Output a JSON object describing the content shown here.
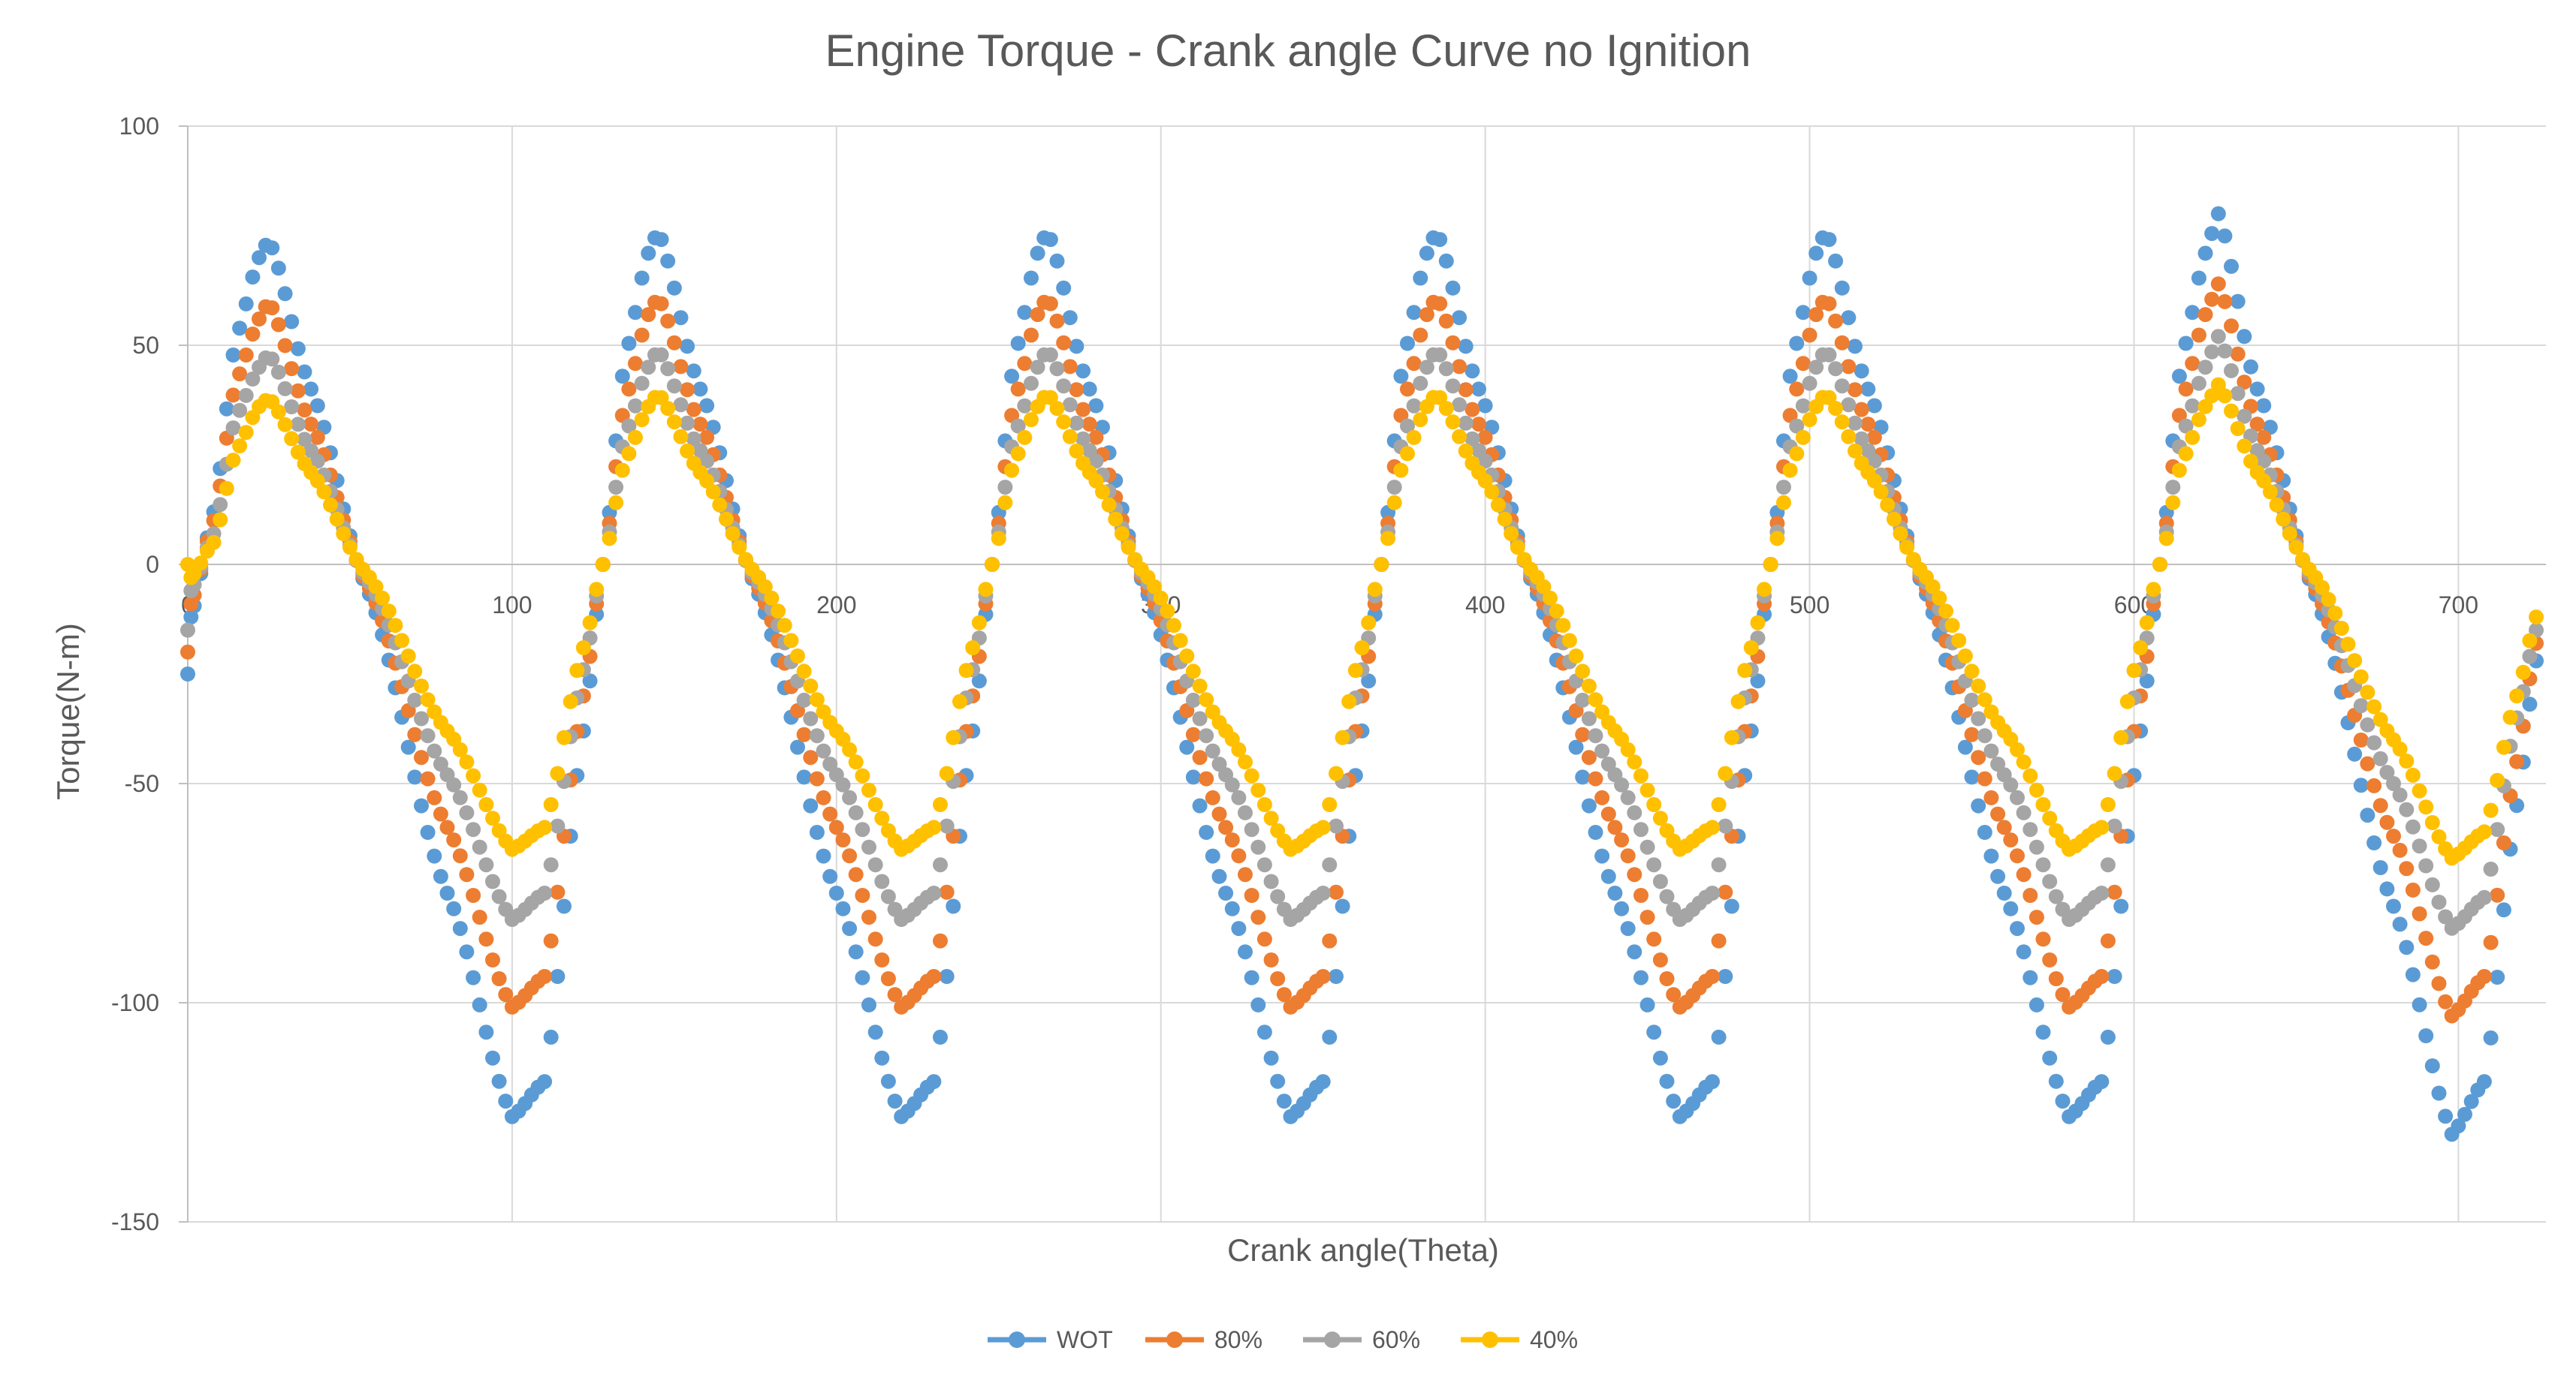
{
  "chart_data": {
    "type": "scatter",
    "title": "Engine Torque - Crank angle Curve no Ignition",
    "xlabel": "Crank angle(Theta)",
    "ylabel": "Torque(N-m)",
    "xlim": [
      0,
      727
    ],
    "ylim": [
      -150,
      100
    ],
    "xticks": [
      0,
      100,
      200,
      300,
      400,
      500,
      600,
      700
    ],
    "yticks": [
      100,
      50,
      0,
      -50,
      -100,
      -150
    ],
    "xtick_labels": [
      "0",
      "100",
      "200",
      "300",
      "400",
      "500",
      "600",
      "700"
    ],
    "ytick_labels": [
      "100",
      "50",
      "0",
      "-50",
      "-100",
      "-150"
    ],
    "grid": true,
    "legend_position": "bottom",
    "x_step": 2,
    "x_end": 724,
    "series": [
      {
        "name": "WOT",
        "color": "#5B9BD5",
        "anchors": [
          [
            0,
            -25
          ],
          [
            1,
            -12
          ],
          [
            8,
            12
          ],
          [
            15,
            52
          ],
          [
            22,
            70
          ],
          [
            25,
            74
          ],
          [
            38,
            40
          ],
          [
            55,
            -5
          ],
          [
            80,
            -75
          ],
          [
            100,
            -126
          ],
          [
            110,
            -118
          ],
          [
            122,
            -38
          ],
          [
            128,
            0
          ],
          [
            135,
            48
          ],
          [
            142,
            71
          ],
          [
            145,
            76
          ],
          [
            158,
            40
          ],
          [
            175,
            -5
          ],
          [
            200,
            -75
          ],
          [
            220,
            -126
          ],
          [
            230,
            -118
          ],
          [
            242,
            -38
          ],
          [
            248,
            0
          ],
          [
            255,
            48
          ],
          [
            262,
            71
          ],
          [
            265,
            76
          ],
          [
            278,
            40
          ],
          [
            295,
            -5
          ],
          [
            320,
            -75
          ],
          [
            340,
            -126
          ],
          [
            350,
            -118
          ],
          [
            362,
            -38
          ],
          [
            368,
            0
          ],
          [
            375,
            48
          ],
          [
            382,
            71
          ],
          [
            385,
            76
          ],
          [
            398,
            40
          ],
          [
            415,
            -5
          ],
          [
            440,
            -75
          ],
          [
            460,
            -126
          ],
          [
            470,
            -118
          ],
          [
            482,
            -38
          ],
          [
            488,
            0
          ],
          [
            495,
            48
          ],
          [
            502,
            71
          ],
          [
            505,
            76
          ],
          [
            518,
            40
          ],
          [
            535,
            -5
          ],
          [
            560,
            -75
          ],
          [
            580,
            -126
          ],
          [
            590,
            -118
          ],
          [
            602,
            -38
          ],
          [
            608,
            0
          ],
          [
            615,
            48
          ],
          [
            622,
            71
          ],
          [
            626,
            80
          ],
          [
            638,
            40
          ],
          [
            655,
            -5
          ],
          [
            680,
            -78
          ],
          [
            698,
            -130
          ],
          [
            708,
            -118
          ],
          [
            718,
            -55
          ],
          [
            724,
            -22
          ]
        ]
      },
      {
        "name": "80%",
        "color": "#ED7D31",
        "anchors": [
          [
            0,
            -20
          ],
          [
            1,
            -9
          ],
          [
            8,
            10
          ],
          [
            15,
            42
          ],
          [
            22,
            56
          ],
          [
            25,
            60
          ],
          [
            38,
            32
          ],
          [
            55,
            -4
          ],
          [
            80,
            -60
          ],
          [
            100,
            -101
          ],
          [
            110,
            -94
          ],
          [
            122,
            -30
          ],
          [
            128,
            0
          ],
          [
            135,
            38
          ],
          [
            142,
            57
          ],
          [
            145,
            61
          ],
          [
            158,
            32
          ],
          [
            175,
            -4
          ],
          [
            200,
            -60
          ],
          [
            220,
            -101
          ],
          [
            230,
            -94
          ],
          [
            242,
            -30
          ],
          [
            248,
            0
          ],
          [
            255,
            38
          ],
          [
            262,
            57
          ],
          [
            265,
            61
          ],
          [
            278,
            32
          ],
          [
            295,
            -4
          ],
          [
            320,
            -60
          ],
          [
            340,
            -101
          ],
          [
            350,
            -94
          ],
          [
            362,
            -30
          ],
          [
            368,
            0
          ],
          [
            375,
            38
          ],
          [
            382,
            57
          ],
          [
            385,
            61
          ],
          [
            398,
            32
          ],
          [
            415,
            -4
          ],
          [
            440,
            -60
          ],
          [
            460,
            -101
          ],
          [
            470,
            -94
          ],
          [
            482,
            -30
          ],
          [
            488,
            0
          ],
          [
            495,
            38
          ],
          [
            502,
            57
          ],
          [
            505,
            61
          ],
          [
            518,
            32
          ],
          [
            535,
            -4
          ],
          [
            560,
            -60
          ],
          [
            580,
            -101
          ],
          [
            590,
            -94
          ],
          [
            602,
            -30
          ],
          [
            608,
            0
          ],
          [
            615,
            38
          ],
          [
            622,
            57
          ],
          [
            626,
            64
          ],
          [
            638,
            32
          ],
          [
            655,
            -4
          ],
          [
            680,
            -62
          ],
          [
            698,
            -103
          ],
          [
            708,
            -94
          ],
          [
            718,
            -45
          ],
          [
            724,
            -18
          ]
        ]
      },
      {
        "name": "60%",
        "color": "#A5A5A5",
        "anchors": [
          [
            0,
            -15
          ],
          [
            1,
            -6
          ],
          [
            8,
            7
          ],
          [
            15,
            34
          ],
          [
            22,
            45
          ],
          [
            25,
            48
          ],
          [
            38,
            26
          ],
          [
            55,
            -3
          ],
          [
            80,
            -48
          ],
          [
            100,
            -81
          ],
          [
            110,
            -75
          ],
          [
            122,
            -24
          ],
          [
            128,
            0
          ],
          [
            135,
            30
          ],
          [
            142,
            45
          ],
          [
            145,
            49
          ],
          [
            158,
            26
          ],
          [
            175,
            -3
          ],
          [
            200,
            -48
          ],
          [
            220,
            -81
          ],
          [
            230,
            -75
          ],
          [
            242,
            -24
          ],
          [
            248,
            0
          ],
          [
            255,
            30
          ],
          [
            262,
            45
          ],
          [
            265,
            49
          ],
          [
            278,
            26
          ],
          [
            295,
            -3
          ],
          [
            320,
            -48
          ],
          [
            340,
            -81
          ],
          [
            350,
            -75
          ],
          [
            362,
            -24
          ],
          [
            368,
            0
          ],
          [
            375,
            30
          ],
          [
            382,
            45
          ],
          [
            385,
            49
          ],
          [
            398,
            26
          ],
          [
            415,
            -3
          ],
          [
            440,
            -48
          ],
          [
            460,
            -81
          ],
          [
            470,
            -75
          ],
          [
            482,
            -24
          ],
          [
            488,
            0
          ],
          [
            495,
            30
          ],
          [
            502,
            45
          ],
          [
            505,
            49
          ],
          [
            518,
            26
          ],
          [
            535,
            -3
          ],
          [
            560,
            -48
          ],
          [
            580,
            -81
          ],
          [
            590,
            -75
          ],
          [
            602,
            -24
          ],
          [
            608,
            0
          ],
          [
            615,
            30
          ],
          [
            622,
            45
          ],
          [
            626,
            52
          ],
          [
            638,
            26
          ],
          [
            655,
            -3
          ],
          [
            680,
            -50
          ],
          [
            698,
            -83
          ],
          [
            708,
            -76
          ],
          [
            718,
            -35
          ],
          [
            724,
            -15
          ]
        ]
      },
      {
        "name": "40%",
        "color": "#FFC000",
        "anchors": [
          [
            0,
            0
          ],
          [
            1,
            -3
          ],
          [
            8,
            5
          ],
          [
            15,
            26
          ],
          [
            22,
            36
          ],
          [
            25,
            38
          ],
          [
            38,
            21
          ],
          [
            55,
            -2
          ],
          [
            80,
            -38
          ],
          [
            100,
            -65
          ],
          [
            110,
            -60
          ],
          [
            122,
            -19
          ],
          [
            128,
            0
          ],
          [
            135,
            24
          ],
          [
            142,
            36
          ],
          [
            145,
            39
          ],
          [
            158,
            21
          ],
          [
            175,
            -2
          ],
          [
            200,
            -38
          ],
          [
            220,
            -65
          ],
          [
            230,
            -60
          ],
          [
            242,
            -19
          ],
          [
            248,
            0
          ],
          [
            255,
            24
          ],
          [
            262,
            36
          ],
          [
            265,
            39
          ],
          [
            278,
            21
          ],
          [
            295,
            -2
          ],
          [
            320,
            -38
          ],
          [
            340,
            -65
          ],
          [
            350,
            -60
          ],
          [
            362,
            -19
          ],
          [
            368,
            0
          ],
          [
            375,
            24
          ],
          [
            382,
            36
          ],
          [
            385,
            39
          ],
          [
            398,
            21
          ],
          [
            415,
            -2
          ],
          [
            440,
            -38
          ],
          [
            460,
            -65
          ],
          [
            470,
            -60
          ],
          [
            482,
            -19
          ],
          [
            488,
            0
          ],
          [
            495,
            24
          ],
          [
            502,
            36
          ],
          [
            505,
            39
          ],
          [
            518,
            21
          ],
          [
            535,
            -2
          ],
          [
            560,
            -38
          ],
          [
            580,
            -65
          ],
          [
            590,
            -60
          ],
          [
            602,
            -19
          ],
          [
            608,
            0
          ],
          [
            615,
            24
          ],
          [
            622,
            36
          ],
          [
            626,
            41
          ],
          [
            638,
            21
          ],
          [
            655,
            -2
          ],
          [
            680,
            -40
          ],
          [
            698,
            -67
          ],
          [
            708,
            -61
          ],
          [
            718,
            -30
          ],
          [
            724,
            -12
          ]
        ]
      }
    ]
  }
}
